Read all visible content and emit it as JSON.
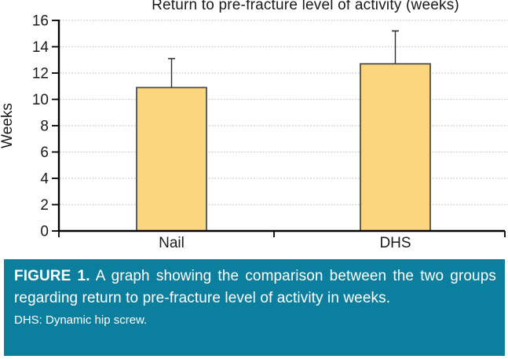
{
  "chart_data": {
    "type": "bar",
    "title": "Return to pre-fracture level of activity (weeks)",
    "ylabel": "Weeks",
    "xlabel": "",
    "categories": [
      "Nail",
      "DHS"
    ],
    "values": [
      10.9,
      12.7
    ],
    "errors_plus": [
      2.2,
      2.5
    ],
    "ylim": [
      0,
      16
    ],
    "yticks": [
      0,
      2,
      4,
      6,
      8,
      10,
      12,
      14,
      16
    ],
    "grid": "horizontal-dotted",
    "legend": "none",
    "bar_fill": "#fcd67f",
    "bar_border": "#4f4f4f",
    "grid_color": "#c9c9c9",
    "axis_color": "#000000",
    "error_color": "#2e2e2e",
    "text_color": "#1a1a1a"
  },
  "caption": {
    "label": "FIGURE 1.",
    "text": "A graph showing the comparison between the two groups regarding return to pre-fracture level of activity in weeks.",
    "note": "DHS: Dynamic hip screw.",
    "background": "#0d7f9e",
    "text_color": "#ffffff"
  }
}
